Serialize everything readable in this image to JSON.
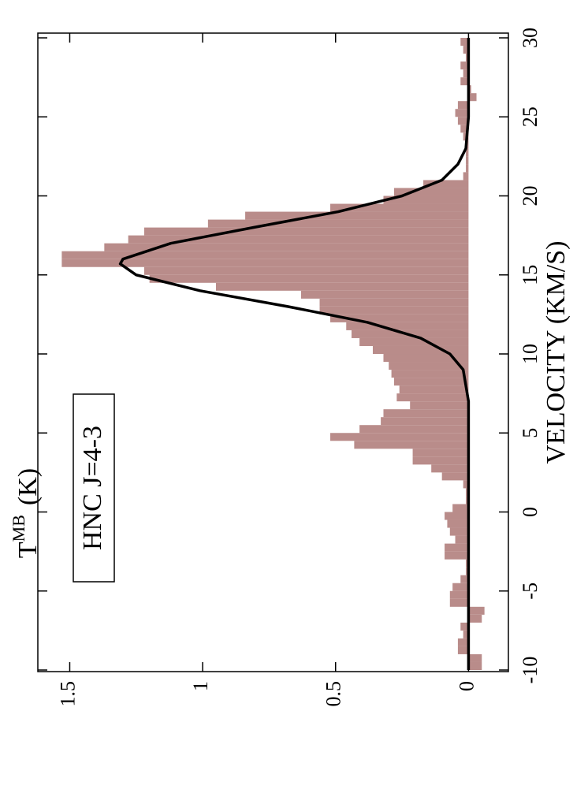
{
  "chart_data": {
    "type": "histogram",
    "xlabel": "VELOCITY (KM/S)",
    "ylabel": "T",
    "ylabel_sub": "MB",
    "ylabel_unit": "(K)",
    "annotation": "HNC J=4-3",
    "bins": [
      -10,
      -9.5,
      -9,
      -8.5,
      -8,
      -7.5,
      -7,
      -6.5,
      -6,
      -5.5,
      -5,
      -4.5,
      -4,
      -3.5,
      -3,
      -2.5,
      -2,
      -1.5,
      -1,
      -0.5,
      0,
      0.5,
      1,
      1.5,
      2,
      2.5,
      3,
      3.5,
      4,
      4.5,
      5,
      5.5,
      6,
      6.5,
      7,
      7.5,
      8,
      8.5,
      9,
      9.5,
      10,
      10.5,
      11,
      11.5,
      12,
      12.5,
      13,
      13.5,
      14,
      14.5,
      15,
      15.5,
      16,
      16.5,
      17,
      17.5,
      18,
      18.5,
      19,
      19.5,
      20,
      20.5,
      21,
      21.5,
      22,
      22.5,
      23,
      23.5,
      24,
      24.5,
      25,
      25.5,
      26,
      26.5,
      27,
      27.5,
      28,
      28.5,
      29,
      29.5,
      30
    ],
    "values": [
      -0.05,
      -0.05,
      0.04,
      0.04,
      0.02,
      0.03,
      -0.05,
      -0.06,
      0.07,
      0.07,
      0.06,
      0.03,
      0.01,
      0.01,
      0.09,
      0.09,
      0.05,
      0.07,
      0.08,
      0.09,
      0.06,
      0.01,
      0.01,
      0.02,
      0.1,
      0.14,
      0.21,
      0.21,
      0.43,
      0.52,
      0.41,
      0.33,
      0.32,
      0.22,
      0.27,
      0.26,
      0.28,
      0.29,
      0.3,
      0.32,
      0.36,
      0.41,
      0.44,
      0.46,
      0.52,
      0.56,
      0.56,
      0.63,
      0.95,
      1.2,
      1.22,
      1.53,
      1.53,
      1.37,
      1.28,
      1.22,
      0.98,
      0.84,
      0.52,
      0.32,
      0.28,
      0.17,
      0.02,
      0.01,
      0.01,
      0.01,
      0.01,
      0.02,
      0.03,
      0.04,
      0.05,
      0.04,
      -0.03,
      -0.01,
      0.03,
      0.02,
      0.03,
      0.01,
      0.02,
      0.03
    ],
    "color": "#b98c8a",
    "fit": {
      "type": "line",
      "x": [
        -10,
        -5,
        0,
        5,
        7,
        8,
        9,
        10,
        11,
        12,
        13,
        14,
        15,
        15.7,
        16,
        17,
        18,
        19,
        20,
        21,
        22,
        23,
        25,
        30
      ],
      "values": [
        0,
        0,
        0,
        0,
        0,
        0.01,
        0.02,
        0.07,
        0.18,
        0.38,
        0.68,
        1.01,
        1.25,
        1.31,
        1.3,
        1.12,
        0.81,
        0.49,
        0.25,
        0.1,
        0.04,
        0.01,
        0,
        0
      ],
      "color": "#000000"
    },
    "xlim": [
      -10.1,
      30.3
    ],
    "ylim": [
      -0.15,
      1.62
    ],
    "xticks": [
      -10,
      -5,
      0,
      5,
      10,
      15,
      20,
      25,
      30
    ],
    "yticks": [
      0,
      0.5,
      1,
      1.5
    ]
  }
}
